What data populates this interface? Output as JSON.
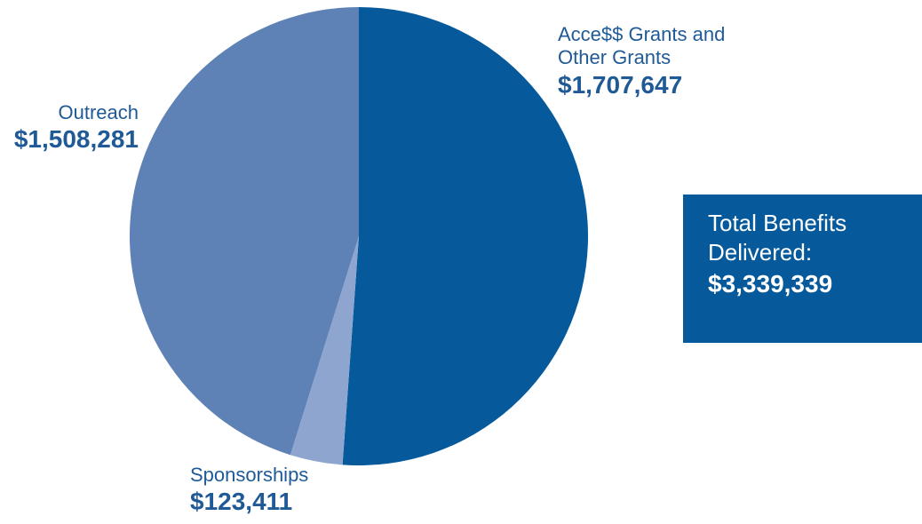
{
  "chart_data": {
    "type": "pie",
    "slices": [
      {
        "name": "Acce$$ Grants and Other Grants",
        "value": 1707647,
        "label": "$1,707,647",
        "color": "#065a9c"
      },
      {
        "name": "Sponsorships",
        "value": 123411,
        "label": "$123,411",
        "color": "#8ea6cf"
      },
      {
        "name": "Outreach",
        "value": 1508281,
        "label": "$1,508,281",
        "color": "#5e82b5"
      }
    ],
    "total": {
      "line1": "Total Benefits",
      "line2": "Delivered:",
      "value_label": "$3,339,339",
      "value": 3339339
    },
    "label_color": "#1f5a96",
    "box_color": "#065a9c"
  },
  "labels": {
    "grants_line1": "Acce$$ Grants and",
    "grants_line2": "Other Grants",
    "grants_value": "$1,707,647",
    "outreach_name": "Outreach",
    "outreach_value": "$1,508,281",
    "sponsorships_name": "Sponsorships",
    "sponsorships_value": "$123,411"
  }
}
